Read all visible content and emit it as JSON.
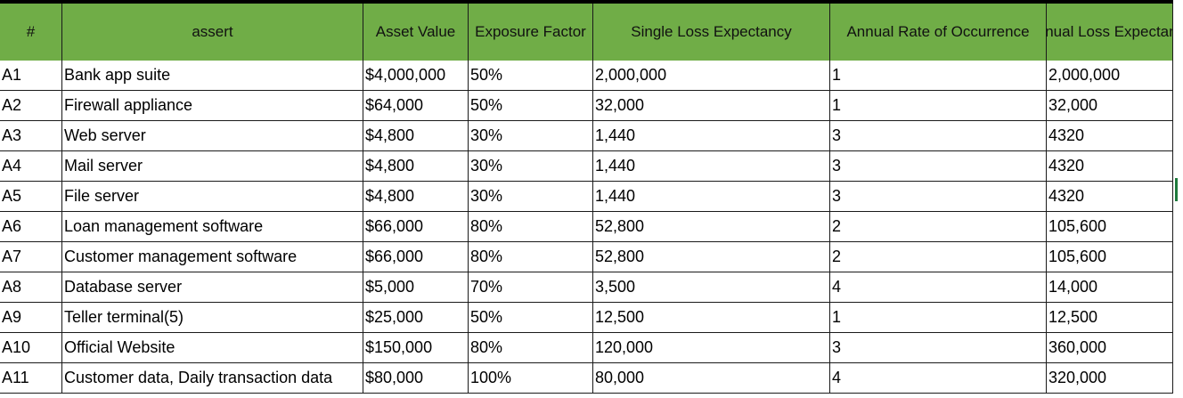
{
  "columns": [
    "#",
    "assert",
    "Asset Value",
    "Exposure Factor",
    "Single Loss Expectancy",
    "Annual Rate of Occurrence",
    "Annual Loss Expectancy"
  ],
  "rows": [
    [
      "A1",
      "Bank app suite",
      "$4,000,000",
      "50%",
      "2,000,000",
      "1",
      "2,000,000"
    ],
    [
      "A2",
      "Firewall appliance",
      "$64,000",
      "50%",
      "32,000",
      "1",
      "32,000"
    ],
    [
      "A3",
      "Web server",
      "$4,800",
      "30%",
      "1,440",
      "3",
      "4320"
    ],
    [
      "A4",
      "Mail server",
      "$4,800",
      "30%",
      "1,440",
      "3",
      "4320"
    ],
    [
      "A5",
      "File server",
      "$4,800",
      "30%",
      "1,440",
      "3",
      "4320"
    ],
    [
      "A6",
      "Loan management software",
      "$66,000",
      "80%",
      "52,800",
      "2",
      "105,600"
    ],
    [
      "A7",
      "Customer management software",
      "$66,000",
      "80%",
      "52,800",
      "2",
      "105,600"
    ],
    [
      "A8",
      "Database server",
      "$5,000",
      "70%",
      "3,500",
      "4",
      "14,000"
    ],
    [
      "A9",
      "Teller terminal(5)",
      "$25,000",
      "50%",
      "12,500",
      "1",
      "12,500"
    ],
    [
      "A10",
      "Official Website",
      "$150,000",
      "80%",
      "120,000",
      "3",
      "360,000"
    ],
    [
      "A11",
      "Customer data, Daily transaction data",
      "$80,000",
      "100%",
      "80,000",
      "4",
      "320,000"
    ]
  ],
  "colors": {
    "header_bg": "#70ad47",
    "selection": "#1e7a3c"
  }
}
